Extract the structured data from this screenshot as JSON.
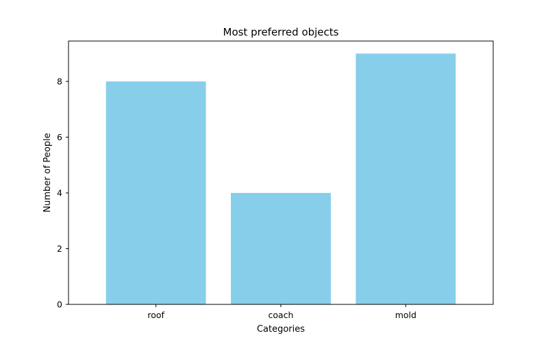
{
  "colors": {
    "bar": "#87CEEB",
    "axis": "#000000",
    "background": "#ffffff"
  },
  "chart_data": {
    "type": "bar",
    "title": "Most preferred objects",
    "xlabel": "Categories",
    "ylabel": "Number of People",
    "categories": [
      "roof",
      "coach",
      "mold"
    ],
    "values": [
      8,
      4,
      9
    ],
    "ylim": [
      0,
      9.45
    ],
    "yticks": [
      0,
      2,
      4,
      6,
      8
    ],
    "grid": false,
    "legend": "none"
  }
}
